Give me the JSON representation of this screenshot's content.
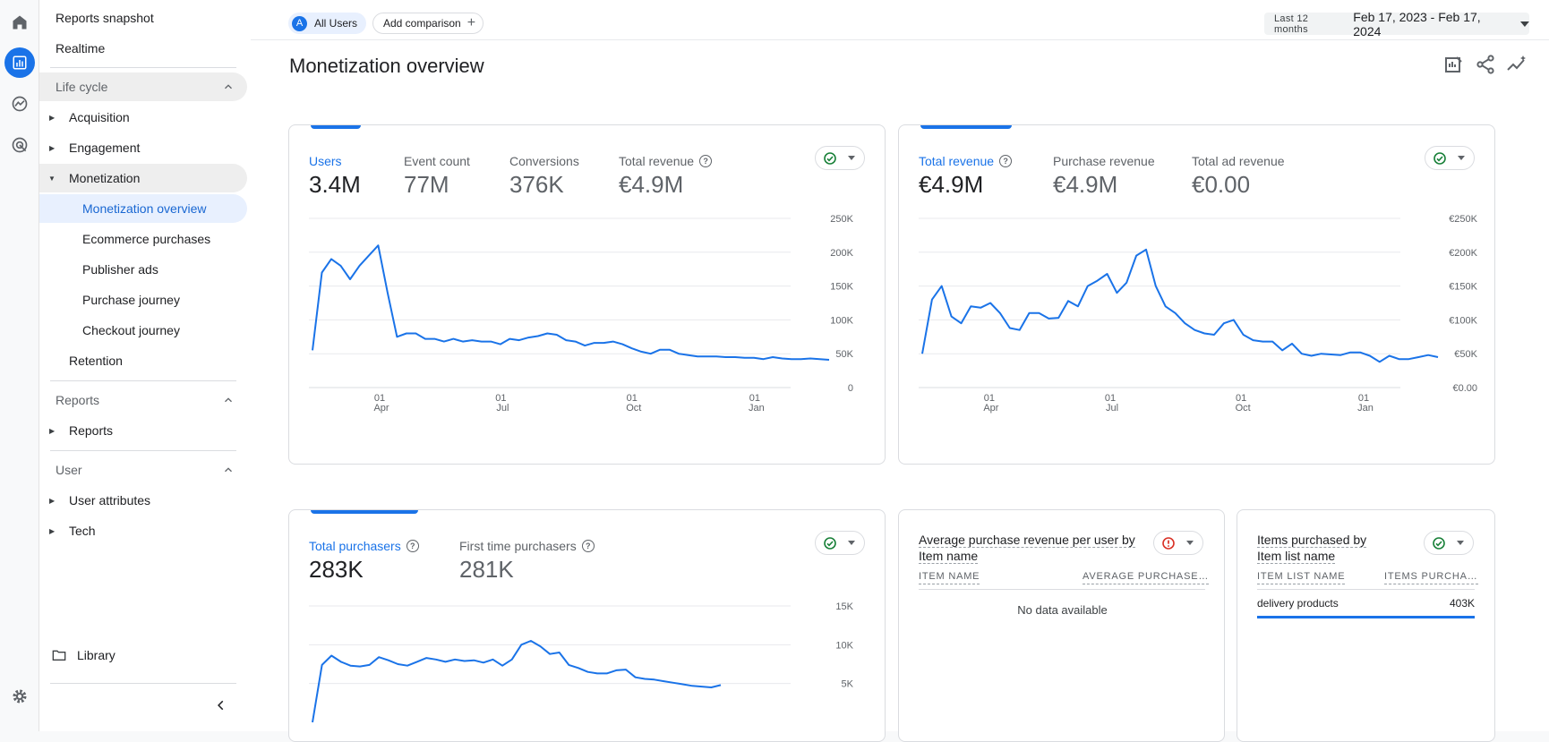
{
  "sidebar": {
    "items": {
      "reports_snapshot": "Reports snapshot",
      "realtime": "Realtime",
      "life_cycle": "Life cycle",
      "acquisition": "Acquisition",
      "engagement": "Engagement",
      "monetization": "Monetization",
      "monetization_overview": "Monetization overview",
      "ecommerce_purchases": "Ecommerce purchases",
      "publisher_ads": "Publisher ads",
      "purchase_journey": "Purchase journey",
      "checkout_journey": "Checkout journey",
      "retention": "Retention",
      "reports_section": "Reports",
      "reports": "Reports",
      "user_section": "User",
      "user_attributes": "User attributes",
      "tech": "Tech",
      "library": "Library"
    }
  },
  "topbar": {
    "segment_letter": "A",
    "segment": "All Users",
    "add_comparison": "Add comparison",
    "date_preset": "Last 12 months",
    "date_range": "Feb 17, 2023 - Feb 17, 2024"
  },
  "page_title": "Monetization overview",
  "cards": {
    "users_card": {
      "metrics": [
        {
          "label": "Users",
          "value": "3.4M"
        },
        {
          "label": "Event count",
          "value": "77M"
        },
        {
          "label": "Conversions",
          "value": "376K"
        },
        {
          "label": "Total revenue",
          "value": "€4.9M"
        }
      ]
    },
    "revenue_card": {
      "metrics": [
        {
          "label": "Total revenue",
          "value": "€4.9M"
        },
        {
          "label": "Purchase revenue",
          "value": "€4.9M"
        },
        {
          "label": "Total ad revenue",
          "value": "€0.00"
        }
      ]
    },
    "purchasers_card": {
      "metrics": [
        {
          "label": "Total purchasers",
          "value": "283K"
        },
        {
          "label": "First time purchasers",
          "value": "281K"
        }
      ]
    },
    "avg_revenue_card": {
      "title": "Average purchase revenue per user by Item name",
      "col1": "ITEM NAME",
      "col2": "AVERAGE PURCHASE…",
      "empty": "No data available",
      "status_color": "#d93025"
    },
    "items_card": {
      "title": "Items purchased by Item list name",
      "col1": "ITEM LIST NAME",
      "col2": "ITEMS PURCHA…",
      "row_name": "delivery products",
      "row_value": "403K",
      "row_share": 1.0
    }
  },
  "chart_data": [
    {
      "type": "line",
      "name": "users_chart",
      "x_ticks": [
        [
          "01",
          "Apr"
        ],
        [
          "01",
          "Jul"
        ],
        [
          "01",
          "Oct"
        ],
        [
          "01",
          "Jan"
        ]
      ],
      "y_ticks": [
        "0",
        "50K",
        "100K",
        "150K",
        "200K",
        "250K"
      ],
      "ylim": [
        0,
        250000
      ],
      "values": [
        55000,
        170000,
        190000,
        180000,
        160000,
        180000,
        195000,
        210000,
        140000,
        75000,
        80000,
        80000,
        72000,
        72000,
        68000,
        72000,
        68000,
        70000,
        68000,
        68000,
        64000,
        72000,
        70000,
        74000,
        76000,
        80000,
        78000,
        70000,
        68000,
        62000,
        66000,
        66000,
        68000,
        64000,
        58000,
        53000,
        50000,
        56000,
        56000,
        50000,
        48000,
        46000,
        46000,
        46000,
        45000,
        45000,
        44000,
        44000,
        42000,
        45000,
        43000,
        42000,
        42000,
        43000,
        42000,
        41000
      ]
    },
    {
      "type": "line",
      "name": "revenue_chart",
      "x_ticks": [
        [
          "01",
          "Apr"
        ],
        [
          "01",
          "Jul"
        ],
        [
          "01",
          "Oct"
        ],
        [
          "01",
          "Jan"
        ]
      ],
      "y_ticks": [
        "€0.00",
        "€50K",
        "€100K",
        "€150K",
        "€200K",
        "€250K"
      ],
      "ylim": [
        0,
        250000
      ],
      "values": [
        50000,
        130000,
        150000,
        105000,
        95000,
        120000,
        118000,
        125000,
        110000,
        88000,
        85000,
        110000,
        110000,
        102000,
        103000,
        128000,
        120000,
        150000,
        158000,
        168000,
        140000,
        155000,
        195000,
        204000,
        150000,
        120000,
        110000,
        95000,
        85000,
        80000,
        78000,
        95000,
        100000,
        78000,
        70000,
        68000,
        68000,
        55000,
        65000,
        50000,
        47000,
        50000,
        49000,
        48000,
        52000,
        52000,
        47000,
        38000,
        47000,
        42000,
        42000,
        45000,
        48000,
        45000
      ]
    },
    {
      "type": "line",
      "name": "purchasers_chart",
      "y_ticks": [
        "5K",
        "10K",
        "15K"
      ],
      "ylim": [
        0,
        15000
      ],
      "values": [
        0,
        7400,
        8600,
        7800,
        7300,
        7200,
        7400,
        8400,
        8000,
        7500,
        7300,
        7800,
        8300,
        8100,
        7800,
        8100,
        7900,
        8000,
        7700,
        8100,
        7300,
        8100,
        10000,
        10500,
        9800,
        8800,
        9000,
        7400,
        7000,
        6500,
        6300,
        6300,
        6700,
        6800,
        5800,
        5600,
        5500,
        5300,
        5100,
        4900,
        4700,
        4600,
        4500,
        4800
      ]
    }
  ],
  "colors": {
    "accent": "#1a73e8",
    "ok": "#188038",
    "error": "#d93025"
  }
}
